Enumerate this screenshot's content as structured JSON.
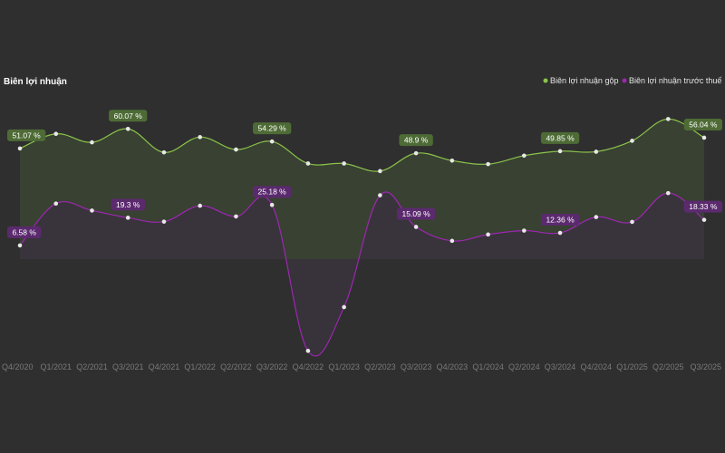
{
  "chart_data": {
    "type": "line",
    "title": "Biên lợi nhuận",
    "categories": [
      "Q4/2020",
      "Q1/2021",
      "Q2/2021",
      "Q3/2021",
      "Q4/2021",
      "Q1/2022",
      "Q2/2022",
      "Q3/2022",
      "Q4/2022",
      "Q1/2023",
      "Q2/2023",
      "Q3/2023",
      "Q4/2023",
      "Q1/2024",
      "Q2/2024",
      "Q3/2024",
      "Q4/2024",
      "Q1/2025",
      "Q2/2025",
      "Q3/2025"
    ],
    "ylim": [
      -45,
      66
    ],
    "series": [
      {
        "name": "Biên lợi nhuận gộp",
        "color": "#8bc34a",
        "label_bg": "#4e6b36",
        "values": [
          51.07,
          57.8,
          53.9,
          60.07,
          49.3,
          56.3,
          50.6,
          54.29,
          44.2,
          44.2,
          40.7,
          48.9,
          45.5,
          43.9,
          47.8,
          49.85,
          49.6,
          54.6,
          64.6,
          56.04
        ],
        "labels": [
          "51.07 %",
          "",
          "",
          "60.07 %",
          "",
          "",
          "",
          "54.29 %",
          "",
          "",
          "",
          "48.9 %",
          "",
          "",
          "",
          "49.85 %",
          "",
          "",
          "",
          "56.04 %"
        ]
      },
      {
        "name": "Biên lợi nhuận trước thuế",
        "color": "#9c27b0",
        "label_bg": "#5b2a6e",
        "values": [
          6.58,
          25.8,
          22.6,
          19.3,
          17.5,
          24.8,
          19.9,
          25.18,
          -41.8,
          -21.7,
          29.6,
          15.09,
          8.7,
          11.6,
          13.4,
          12.36,
          19.6,
          17.4,
          30.6,
          18.33
        ],
        "labels": [
          "6.58 %",
          "",
          "",
          "19.3 %",
          "",
          "",
          "",
          "25.18 %",
          "",
          "",
          "",
          "15.09 %",
          "",
          "",
          "",
          "12.36 %",
          "",
          "",
          "",
          "18.33 %"
        ]
      }
    ]
  }
}
